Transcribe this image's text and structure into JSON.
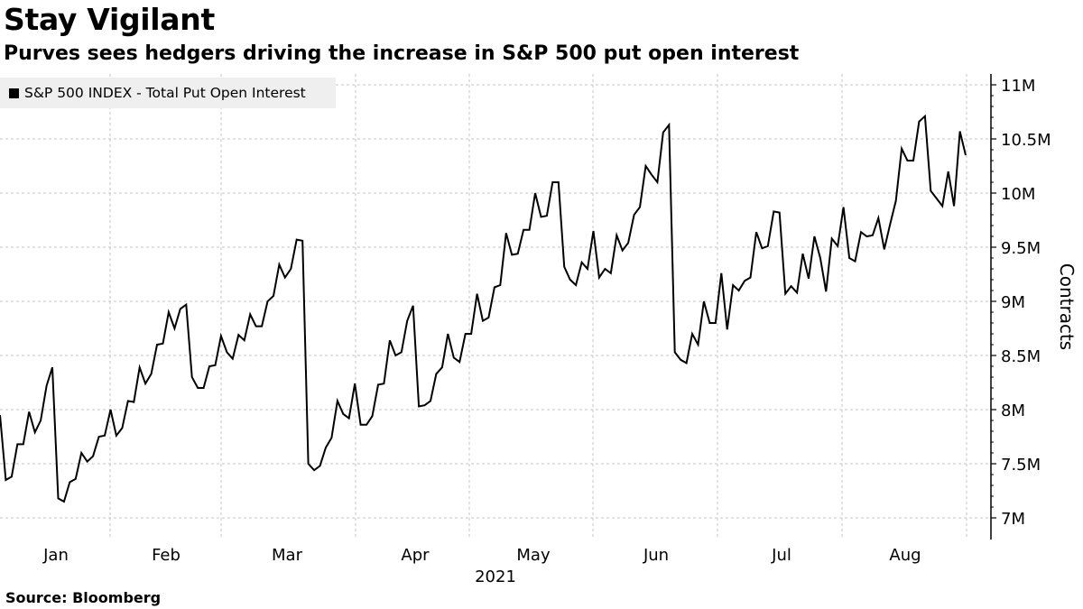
{
  "header": {
    "title": "Stay Vigilant",
    "subtitle": "Purves sees hedgers driving the increase in S&P 500 put open interest"
  },
  "footer": {
    "source": "Source: Bloomberg"
  },
  "colors": {
    "line": "#000000",
    "grid": "#c4c4c4",
    "legend_bg": "#efefef"
  },
  "chart_data": {
    "type": "line",
    "title": "Stay Vigilant",
    "subtitle": "Purves sees hedgers driving the increase in S&P 500 put open interest",
    "ylabel": "Contracts",
    "xlabel": "2021",
    "ylim": [
      6850000,
      11100000
    ],
    "yticks": [
      7000000,
      7500000,
      8000000,
      8500000,
      9000000,
      9500000,
      10000000,
      10500000,
      11000000
    ],
    "ytick_labels": [
      "7M",
      "7.5M",
      "8M",
      "8.5M",
      "9M",
      "9.5M",
      "10M",
      "10.5M",
      "11M"
    ],
    "x_tick_labels": [
      "Jan",
      "Feb",
      "Mar",
      "Apr",
      "May",
      "Jun",
      "Jul",
      "Aug"
    ],
    "year_label": "2021",
    "grid": true,
    "legend_position": "top-left",
    "series": [
      {
        "name": "S&P 500 INDEX - Total Put Open Interest",
        "values": [
          7950000,
          7350000,
          7380000,
          7680000,
          7680000,
          7980000,
          7790000,
          7900000,
          8220000,
          8390000,
          7180000,
          7150000,
          7330000,
          7360000,
          7600000,
          7520000,
          7570000,
          7750000,
          7760000,
          8000000,
          7760000,
          7830000,
          8080000,
          8070000,
          8390000,
          8240000,
          8330000,
          8600000,
          8610000,
          8900000,
          8750000,
          8930000,
          8970000,
          8300000,
          8200000,
          8200000,
          8400000,
          8410000,
          8680000,
          8530000,
          8470000,
          8690000,
          8640000,
          8880000,
          8770000,
          8770000,
          9000000,
          9050000,
          9340000,
          9220000,
          9300000,
          9570000,
          9560000,
          7500000,
          7440000,
          7480000,
          7650000,
          7740000,
          8080000,
          7960000,
          7920000,
          8240000,
          7860000,
          7860000,
          7940000,
          8230000,
          8240000,
          8640000,
          8500000,
          8530000,
          8820000,
          8960000,
          8030000,
          8040000,
          8080000,
          8330000,
          8390000,
          8700000,
          8480000,
          8440000,
          8700000,
          8700000,
          9070000,
          8820000,
          8850000,
          9130000,
          9150000,
          9630000,
          9430000,
          9440000,
          9660000,
          9660000,
          10000000,
          9780000,
          9790000,
          10100000,
          10100000,
          9320000,
          9200000,
          9150000,
          9360000,
          9300000,
          9650000,
          9220000,
          9300000,
          9260000,
          9610000,
          9470000,
          9540000,
          9800000,
          9870000,
          10250000,
          10170000,
          10100000,
          10560000,
          10630000,
          8530000,
          8460000,
          8430000,
          8700000,
          8600000,
          9000000,
          8800000,
          8800000,
          9260000,
          8740000,
          9150000,
          9100000,
          9190000,
          9220000,
          9640000,
          9490000,
          9510000,
          9830000,
          9820000,
          9070000,
          9140000,
          9080000,
          9440000,
          9210000,
          9600000,
          9400000,
          9090000,
          9580000,
          9510000,
          9870000,
          9400000,
          9370000,
          9640000,
          9600000,
          9610000,
          9770000,
          9480000,
          9710000,
          9930000,
          10410000,
          10300000,
          10300000,
          10660000,
          10710000,
          10020000,
          9950000,
          9880000,
          10200000,
          9880000,
          10570000,
          10350000
        ]
      }
    ]
  }
}
